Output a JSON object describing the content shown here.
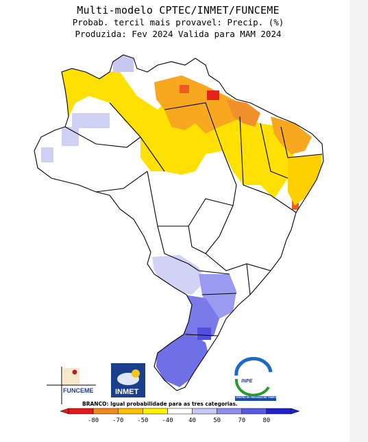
{
  "header": {
    "line1": "Multi-modelo CPTEC/INMET/FUNCEME",
    "line2": "Probab. tercil mais provavel: Precip. (%)",
    "line3": "Produzida: Fev 2024   Valida para MAM 2024"
  },
  "note": "BRANCO: Igual probabilidade para as tres categorias.",
  "colorbar": {
    "tick_labels": [
      "-80",
      "-70",
      "-50",
      "-40",
      "40",
      "50",
      "70",
      "80"
    ],
    "colors": [
      "#e41a1c",
      "#f08a1e",
      "#ffc000",
      "#fff200",
      "#ffffff",
      "#c8c8f5",
      "#8e8ef0",
      "#5a5ae6",
      "#2222cc"
    ]
  },
  "logos": {
    "funceme": "FUNCEME",
    "inmet": "INMET",
    "inpe": "INPE",
    "inpe_sub": "CENTRO DE PREVISAO DE TEMPO"
  },
  "colors": {
    "dry_strong": "#e41a1c",
    "dry_mid": "#f0a030",
    "dry_light": "#ffd700",
    "neutral": "#ffffff",
    "wet_light": "#c8c8f5",
    "wet_mid": "#8e8ef0",
    "wet_strong": "#5a5ae6"
  }
}
